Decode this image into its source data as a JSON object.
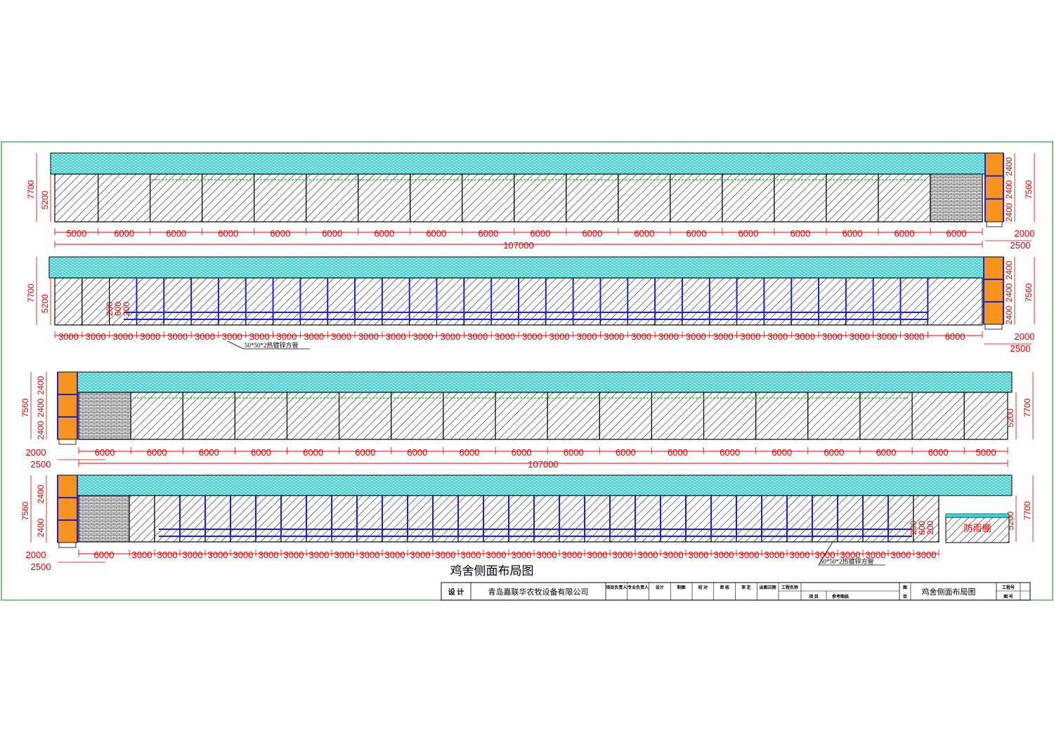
{
  "title": "鸡舍侧面布局图",
  "elevations": [
    {
      "id": "A",
      "left_heights": [
        "7700",
        "5200"
      ],
      "right_heights": [
        "7560",
        "2400",
        "2400",
        "2400"
      ],
      "bay_labels": [
        "5000",
        "6000",
        "6000",
        "6000",
        "6000",
        "6000",
        "6000",
        "6000",
        "6000",
        "6000",
        "6000",
        "6000",
        "6000",
        "6000",
        "6000",
        "6000",
        "6000",
        "6000"
      ],
      "total": "107000",
      "tower_dims": [
        "2000",
        "2500"
      ]
    },
    {
      "id": "B",
      "left_heights": [
        "7700",
        "5200"
      ],
      "right_heights": [
        "7560",
        "2400",
        "2400",
        "2400"
      ],
      "small_dims": [
        "200",
        "600",
        "200"
      ],
      "bay_labels": [
        "3000",
        "3000",
        "3000",
        "3000",
        "3000",
        "3000",
        "3000",
        "3000",
        "3000",
        "3000",
        "3000",
        "3000",
        "3000",
        "3000",
        "3000",
        "3000",
        "3000",
        "3000",
        "3000",
        "3000",
        "3000",
        "3000",
        "3000",
        "3000",
        "3000",
        "3000",
        "3000",
        "3000",
        "3000",
        "3000",
        "3000",
        "3000",
        "6000"
      ],
      "tower_dims": [
        "2000",
        "2500"
      ],
      "pipe_note": "50*50*2热镀锌方管"
    },
    {
      "id": "C",
      "left_heights": [
        "7560",
        "2400",
        "2400",
        "2400"
      ],
      "right_heights": [
        "5200",
        "7700"
      ],
      "bay_labels": [
        "6000",
        "6000",
        "6000",
        "6000",
        "6000",
        "6000",
        "6000",
        "6000",
        "6000",
        "6000",
        "6000",
        "6000",
        "6000",
        "6000",
        "6000",
        "6000",
        "6000",
        "5000"
      ],
      "total": "107000",
      "tower_dims": [
        "2000",
        "2500"
      ]
    },
    {
      "id": "D",
      "left_heights": [
        "7560",
        "2400",
        "2400"
      ],
      "right_heights": [
        "5200",
        "7700"
      ],
      "small_dims": [
        "200",
        "600",
        "200"
      ],
      "bay_labels": [
        "6000",
        "3000",
        "3000",
        "3000",
        "3000",
        "3000",
        "3000",
        "3000",
        "3000",
        "3000",
        "3000",
        "3000",
        "3000",
        "3000",
        "3000",
        "3000",
        "3000",
        "3000",
        "3000",
        "3000",
        "3000",
        "3000",
        "3000",
        "3000",
        "3000",
        "3000",
        "3000",
        "3000",
        "3000",
        "3000",
        "3000",
        "3000",
        "3000"
      ],
      "tower_dims": [
        "2000",
        "2500"
      ],
      "pipe_note": "50*50*2热镀锌方管",
      "canopy_label": "防雨棚"
    }
  ],
  "title_block": {
    "design_label": "设  计",
    "company": "青岛嘉联华农牧设备有限公司",
    "cols": [
      "项目负责人",
      "专业负责人",
      "设计",
      "制图",
      "校  对",
      "审  核",
      "审  定",
      "出图日期"
    ],
    "project_name_label": "工程名称",
    "item_label": "项    目",
    "item_value": "参考图纸",
    "drawing_label_top": "图",
    "drawing_label_bottom": "目",
    "drawing_title": "鸡舍侧面布局图",
    "job_no_label": "工程号",
    "sheet_no_label": "图    号"
  },
  "colors": {
    "frame": "#2e9a2e",
    "roof": "#33e0e0",
    "wall_hatch": "#000000",
    "dimension": "#e00000",
    "tower": "#f7941d",
    "truss": "#2020d0",
    "green_line": "#00cc00"
  }
}
